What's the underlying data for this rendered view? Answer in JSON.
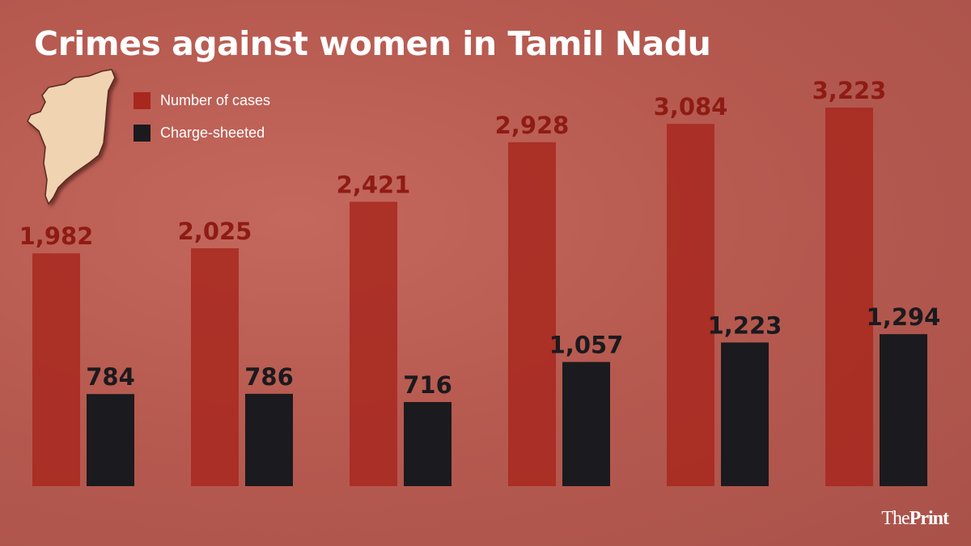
{
  "chart_data": {
    "type": "bar",
    "title": "Crimes against women in Tamil Nadu",
    "categories": [
      "",
      "",
      "",
      "",
      "",
      ""
    ],
    "series": [
      {
        "name": "Number of cases",
        "color": "#a8281e",
        "label_color": "#8e1c14",
        "values": [
          1982,
          2025,
          2421,
          2928,
          3084,
          3223
        ],
        "labels": [
          "1,982",
          "2,025",
          "2,421",
          "2,928",
          "3,084",
          "3,223"
        ]
      },
      {
        "name": "Charge-sheeted",
        "color": "#1b1a1e",
        "label_color": "#1b1a1e",
        "values": [
          784,
          786,
          716,
          1057,
          1223,
          1294
        ],
        "labels": [
          "784",
          "786",
          "716",
          "1,057",
          "1,223",
          "1,294"
        ]
      }
    ],
    "ylim": [
      0,
      3300
    ],
    "grid": false,
    "legend": "top-left"
  },
  "branding": {
    "logo_the": "The",
    "logo_print": "Print"
  },
  "colors": {
    "background": "#b75a50",
    "map": "#f0d3b0"
  }
}
